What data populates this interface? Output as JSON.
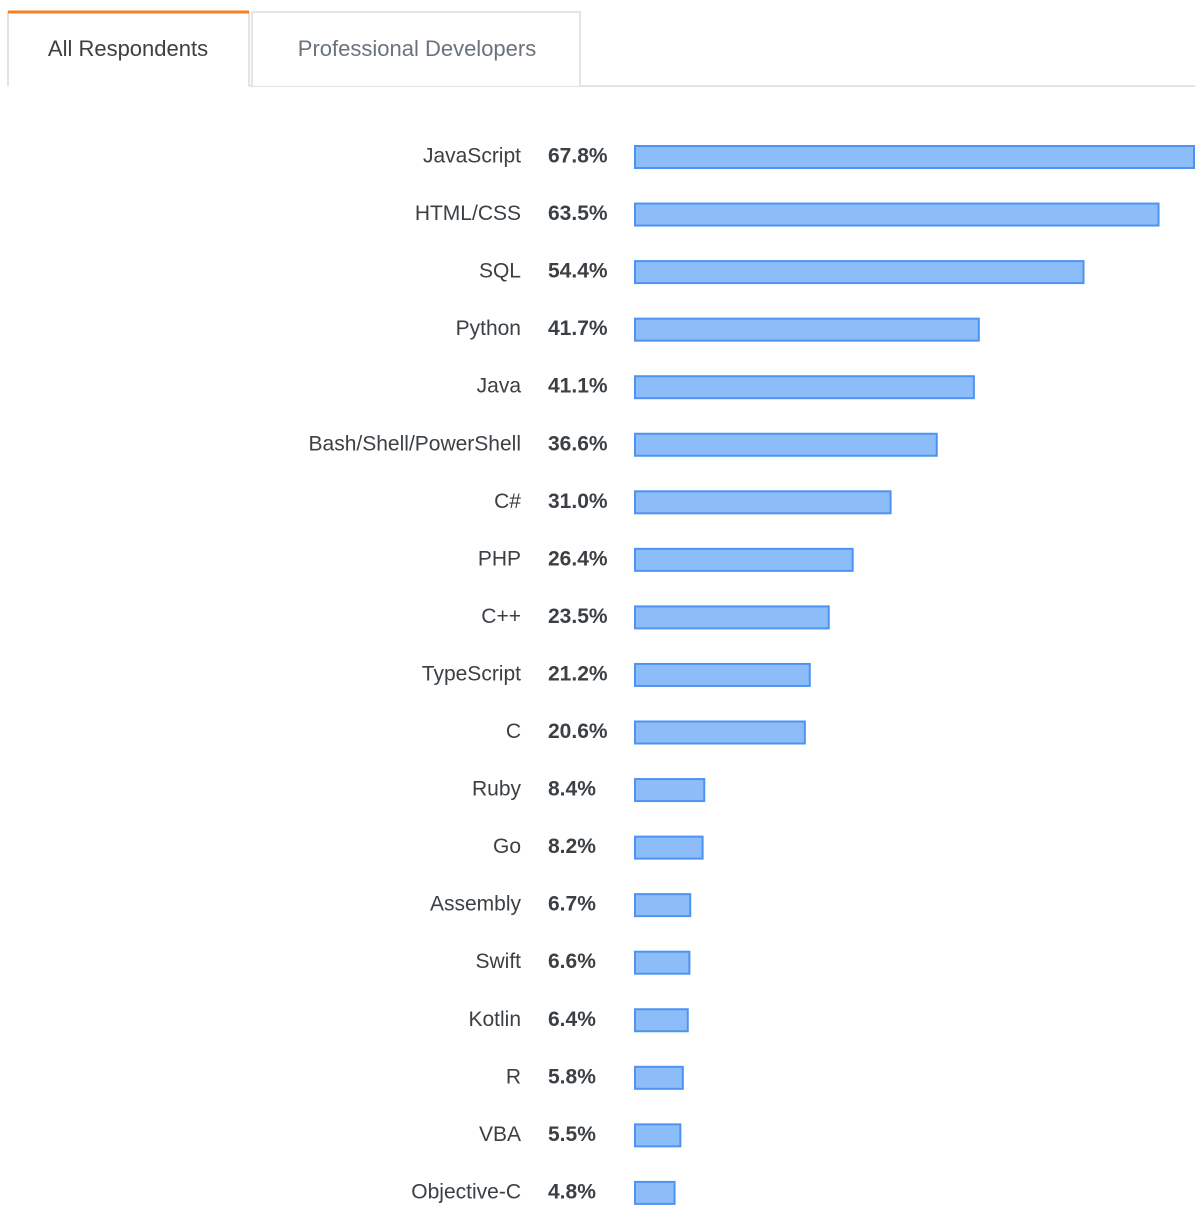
{
  "tabs": [
    "All Respondents",
    "Professional Developers"
  ],
  "chart_data": {
    "type": "bar",
    "orientation": "horizontal",
    "categories": [
      "JavaScript",
      "HTML/CSS",
      "SQL",
      "Python",
      "Java",
      "Bash/Shell/PowerShell",
      "C#",
      "PHP",
      "C++",
      "TypeScript",
      "C",
      "Ruby",
      "Go",
      "Assembly",
      "Swift",
      "Kotlin",
      "R",
      "VBA",
      "Objective-C"
    ],
    "values": [
      67.8,
      63.5,
      54.4,
      41.7,
      41.1,
      36.6,
      31.0,
      26.4,
      23.5,
      21.2,
      20.6,
      8.4,
      8.2,
      6.7,
      6.6,
      6.4,
      5.8,
      5.5,
      4.8
    ],
    "value_labels": [
      "67.8%",
      "63.5%",
      "54.4%",
      "41.7%",
      "41.1%",
      "36.6%",
      "31.0%",
      "26.4%",
      "23.5%",
      "21.2%",
      "20.6%",
      "8.4%",
      "8.2%",
      "6.7%",
      "6.6%",
      "6.4%",
      "5.8%",
      "5.5%",
      "4.8%"
    ],
    "color": "#8cbdf8",
    "edge_color": "#4d94f2"
  }
}
